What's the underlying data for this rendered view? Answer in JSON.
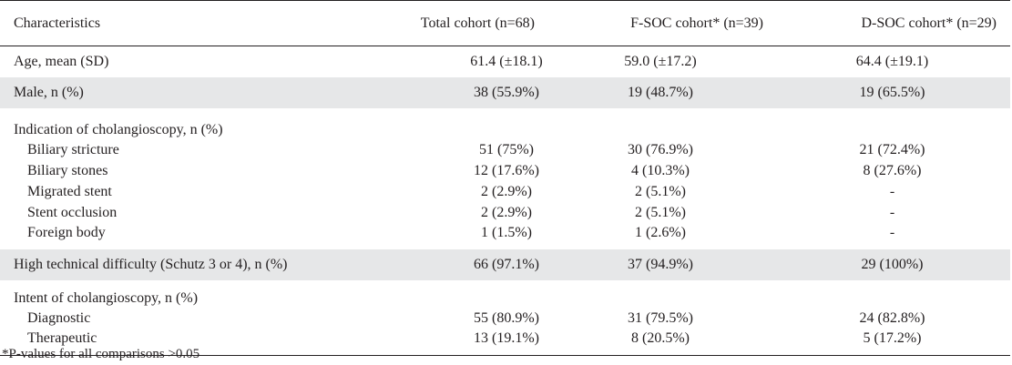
{
  "header": {
    "characteristics": "Characteristics",
    "total": "Total cohort (n=68)",
    "fsoc": "F-SOC cohort* (n=39)",
    "dsoc": "D-SOC cohort* (n=29)"
  },
  "rows": [
    {
      "label": "Age, mean (SD)",
      "total": "61.4 (±18.1)",
      "fsoc": "59.0 (±17.2)",
      "dsoc": "64.4 (±19.1)"
    },
    {
      "label": "Male, n (%)",
      "total": "38 (55.9%)",
      "fsoc": "19 (48.7%)",
      "dsoc": "19 (65.5%)"
    },
    {
      "label": "Indication of cholangioscopy, n (%)",
      "total": "",
      "fsoc": "",
      "dsoc": ""
    },
    {
      "label": "Biliary stricture",
      "total": "51 (75%)",
      "fsoc": "30 (76.9%)",
      "dsoc": "21 (72.4%)"
    },
    {
      "label": "Biliary stones",
      "total": "12 (17.6%)",
      "fsoc": "4 (10.3%)",
      "dsoc": "8 (27.6%)"
    },
    {
      "label": "Migrated stent",
      "total": "2 (2.9%)",
      "fsoc": "2 (5.1%)",
      "dsoc": "-"
    },
    {
      "label": "Stent occlusion",
      "total": "2 (2.9%)",
      "fsoc": "2 (5.1%)",
      "dsoc": "-"
    },
    {
      "label": "Foreign body",
      "total": "1 (1.5%)",
      "fsoc": "1 (2.6%)",
      "dsoc": "-"
    },
    {
      "label": "High technical difficulty (Schutz 3 or 4), n (%)",
      "total": "66 (97.1%)",
      "fsoc": "37 (94.9%)",
      "dsoc": "29 (100%)"
    },
    {
      "label": "Intent of cholangioscopy, n (%)",
      "total": "",
      "fsoc": "",
      "dsoc": ""
    },
    {
      "label": "Diagnostic",
      "total": "55 (80.9%)",
      "fsoc": "31 (79.5%)",
      "dsoc": "24 (82.8%)"
    },
    {
      "label": "Therapeutic",
      "total": "13 (19.1%)",
      "fsoc": "8 (20.5%)",
      "dsoc": "5 (17.2%)"
    }
  ],
  "footnote": "*P-values for all comparisons >0.05",
  "colors": {
    "shade": "#e6e7e8",
    "text": "#231f20"
  }
}
